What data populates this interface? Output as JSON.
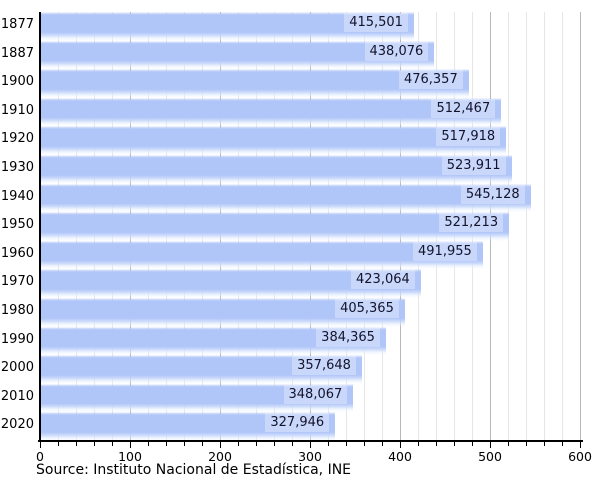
{
  "chart_data": {
    "type": "bar",
    "orientation": "horizontal",
    "title": "",
    "categories": [
      "1877",
      "1887",
      "1900",
      "1910",
      "1920",
      "1930",
      "1940",
      "1950",
      "1960",
      "1970",
      "1980",
      "1990",
      "2000",
      "2010",
      "2020"
    ],
    "values": [
      415501,
      438076,
      476357,
      512467,
      517918,
      523911,
      545128,
      521213,
      491955,
      423064,
      405365,
      384365,
      357648,
      348067,
      327946
    ],
    "value_labels": [
      "415,501",
      "438,076",
      "476,357",
      "512,467",
      "517,918",
      "523,911",
      "545,128",
      "521,213",
      "491,955",
      "423,064",
      "405,365",
      "384,365",
      "357,648",
      "348,067",
      "327,946"
    ],
    "xlabel": "",
    "ylabel": "",
    "xlim": [
      0,
      600
    ],
    "x_ticks": [
      0,
      100,
      200,
      300,
      400,
      500,
      600
    ],
    "x_minor_step": 20,
    "x_scale_note": "thousands",
    "grid": true,
    "legend": false,
    "source": "Source: Instituto Nacional de Estadística, INE",
    "colors": {
      "bar": "#b1c6f8",
      "label_bg": "rgba(255,255,255,0.30)",
      "grid_minor": "#e6e6e6",
      "grid_major": "#b8b8b8",
      "axis": "#000000",
      "text": "#14142c"
    }
  }
}
